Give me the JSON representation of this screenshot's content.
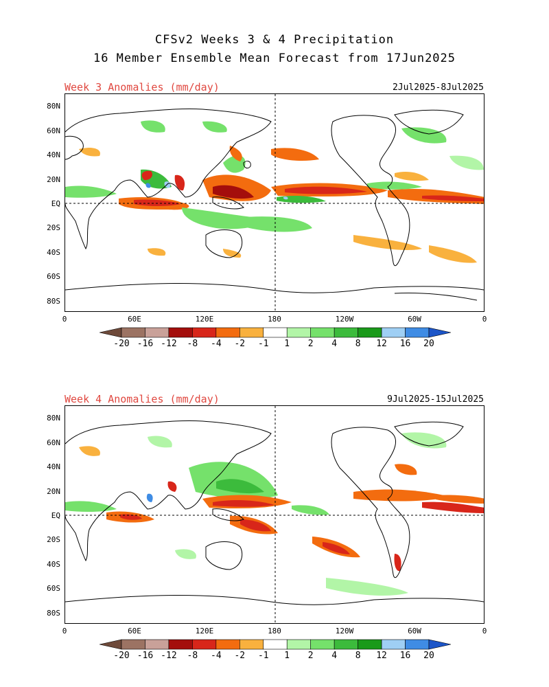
{
  "title_line1": "CFSv2 Weeks 3 & 4 Precipitation",
  "title_line2": "16 Member Ensemble Mean Forecast from 17Jun2025",
  "panels": [
    {
      "label": "Week 3 Anomalies (mm/day)",
      "dates": "2Jul2025-8Jul2025"
    },
    {
      "label": "Week 4 Anomalies (mm/day)",
      "dates": "9Jul2025-15Jul2025"
    }
  ],
  "lat_labels": [
    "80N",
    "60N",
    "40N",
    "20N",
    "EQ",
    "20S",
    "40S",
    "60S",
    "80S"
  ],
  "lon_labels": [
    "0",
    "60E",
    "120E",
    "180",
    "120W",
    "60W",
    "0"
  ],
  "colorbar": {
    "labels": [
      "-20",
      "-16",
      "-12",
      "-8",
      "-4",
      "-2",
      "-1",
      "1",
      "2",
      "4",
      "8",
      "12",
      "16",
      "20"
    ],
    "colors": [
      "#6e4a3a",
      "#9c7363",
      "#c9a199",
      "#a40e0c",
      "#d8261a",
      "#f36c0f",
      "#f9b13e",
      "#ffffff",
      "#b2f5a7",
      "#75e16b",
      "#3cbb3c",
      "#1a9a1a",
      "#9fcff4",
      "#3f8ce4",
      "#1c55c8"
    ]
  }
}
